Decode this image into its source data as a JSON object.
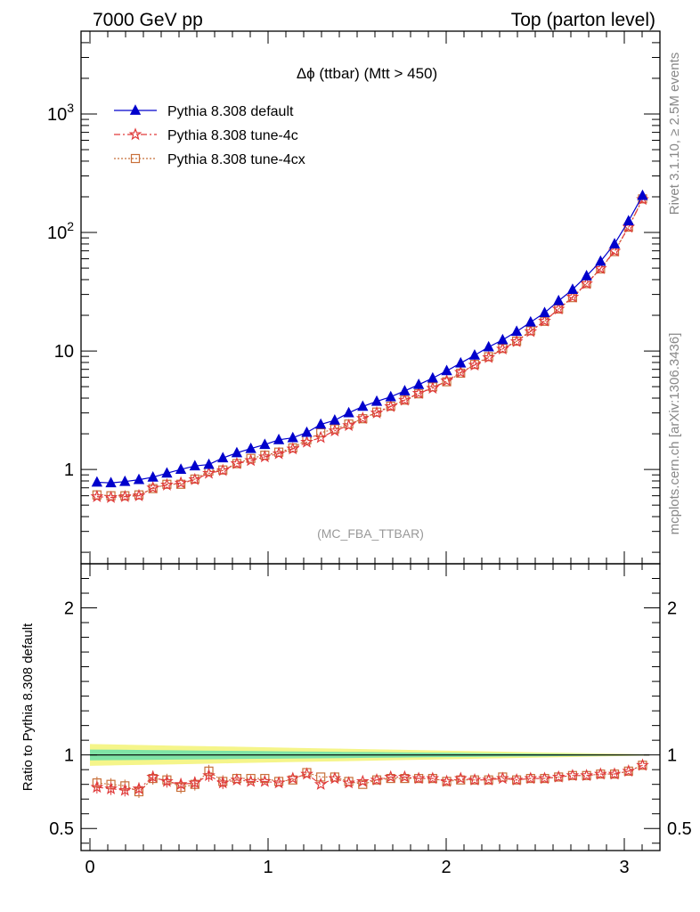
{
  "header": {
    "left": "7000 GeV pp",
    "right": "Top (parton level)"
  },
  "side_text": {
    "rivet": "Rivet 3.1.10, ≥ 2.5M events",
    "mcplots": "mcplots.cern.ch [arXiv:1306.3436]"
  },
  "chart_data": {
    "type": "line",
    "title": "Δϕ (ttbar) (Mtt > 450)",
    "watermark": "(MC_FBA_TTBAR)",
    "xlabel": "",
    "ylabel": "",
    "ratio_ylabel": "Ratio to Pythia 8.308 default",
    "xlim": [
      -0.05,
      3.2
    ],
    "ylim": [
      0.16,
      5000
    ],
    "log_y": true,
    "ratio_ylim": [
      0.35,
      2.3
    ],
    "x_ticks": [
      "0",
      "1",
      "2",
      "3"
    ],
    "y_ticks": [
      "1",
      "10",
      "10²",
      "10³"
    ],
    "ratio_y_ticks": [
      "0.5",
      "1",
      "2"
    ],
    "legend_position": "top-left",
    "colors": {
      "default": "#0000cc",
      "tune4c": "#e03a3a",
      "tune4cx": "#c8703a",
      "band_inner": "#7fe3a6",
      "band_outer": "#f5f58a"
    },
    "x": [
      0.0393,
      0.1178,
      0.1963,
      0.2749,
      0.3534,
      0.432,
      0.5105,
      0.589,
      0.6676,
      0.7461,
      0.8247,
      0.9032,
      0.9817,
      1.0603,
      1.1388,
      1.2174,
      1.2959,
      1.3744,
      1.453,
      1.5315,
      1.6101,
      1.6886,
      1.7671,
      1.8457,
      1.9242,
      2.0028,
      2.0813,
      2.1598,
      2.2384,
      2.3169,
      2.3955,
      2.474,
      2.5525,
      2.6311,
      2.7096,
      2.7882,
      2.8667,
      2.9452,
      3.0238,
      3.1023
    ],
    "series": [
      {
        "name": "Pythia 8.308 default",
        "marker": "triangle",
        "values": [
          0.78,
          0.77,
          0.79,
          0.82,
          0.86,
          0.93,
          1.0,
          1.07,
          1.1,
          1.25,
          1.38,
          1.5,
          1.62,
          1.78,
          1.85,
          2.05,
          2.4,
          2.6,
          3.0,
          3.4,
          3.75,
          4.1,
          4.6,
          5.2,
          5.9,
          6.8,
          7.9,
          9.2,
          10.8,
          12.4,
          14.6,
          17.5,
          21.0,
          26.5,
          33.0,
          43.0,
          57.0,
          80.0,
          125.0,
          205.0
        ],
        "ratio": [
          1,
          1,
          1,
          1,
          1,
          1,
          1,
          1,
          1,
          1,
          1,
          1,
          1,
          1,
          1,
          1,
          1,
          1,
          1,
          1,
          1,
          1,
          1,
          1,
          1,
          1,
          1,
          1,
          1,
          1,
          1,
          1,
          1,
          1,
          1,
          1,
          1,
          1,
          1,
          1
        ]
      },
      {
        "name": "Pythia 8.308 tune-4c",
        "marker": "star",
        "values": [
          0.59,
          0.58,
          0.59,
          0.6,
          0.7,
          0.74,
          0.77,
          0.82,
          0.93,
          0.98,
          1.12,
          1.19,
          1.28,
          1.36,
          1.49,
          1.7,
          1.86,
          2.12,
          2.35,
          2.7,
          3.0,
          3.4,
          3.85,
          4.4,
          4.85,
          5.6,
          6.6,
          7.6,
          8.8,
          10.4,
          12.0,
          14.6,
          17.9,
          22.6,
          28.6,
          37.0,
          49.6,
          69.6,
          111.0,
          190.0
        ],
        "ratio": [
          0.78,
          0.77,
          0.76,
          0.77,
          0.85,
          0.82,
          0.8,
          0.81,
          0.86,
          0.81,
          0.83,
          0.82,
          0.82,
          0.81,
          0.84,
          0.87,
          0.8,
          0.84,
          0.81,
          0.82,
          0.83,
          0.85,
          0.85,
          0.84,
          0.84,
          0.82,
          0.84,
          0.83,
          0.83,
          0.84,
          0.83,
          0.84,
          0.84,
          0.85,
          0.86,
          0.86,
          0.87,
          0.87,
          0.89,
          0.93
        ]
      },
      {
        "name": "Pythia 8.308 tune-4cx",
        "marker": "square",
        "values": [
          0.61,
          0.6,
          0.6,
          0.61,
          0.69,
          0.75,
          0.75,
          0.83,
          0.97,
          0.99,
          1.12,
          1.24,
          1.32,
          1.4,
          1.52,
          1.78,
          2.04,
          2.2,
          2.42,
          2.68,
          3.05,
          3.42,
          3.85,
          4.35,
          4.98,
          5.5,
          6.5,
          7.7,
          8.95,
          10.5,
          12.1,
          14.8,
          17.8,
          22.6,
          28.2,
          37.0,
          49.3,
          69.0,
          111.0,
          192.0
        ],
        "ratio": [
          0.81,
          0.8,
          0.79,
          0.75,
          0.84,
          0.83,
          0.78,
          0.8,
          0.89,
          0.82,
          0.84,
          0.84,
          0.84,
          0.82,
          0.83,
          0.88,
          0.85,
          0.85,
          0.82,
          0.8,
          0.83,
          0.84,
          0.84,
          0.84,
          0.84,
          0.82,
          0.83,
          0.83,
          0.83,
          0.85,
          0.83,
          0.84,
          0.84,
          0.85,
          0.86,
          0.86,
          0.87,
          0.87,
          0.89,
          0.93
        ]
      }
    ]
  }
}
